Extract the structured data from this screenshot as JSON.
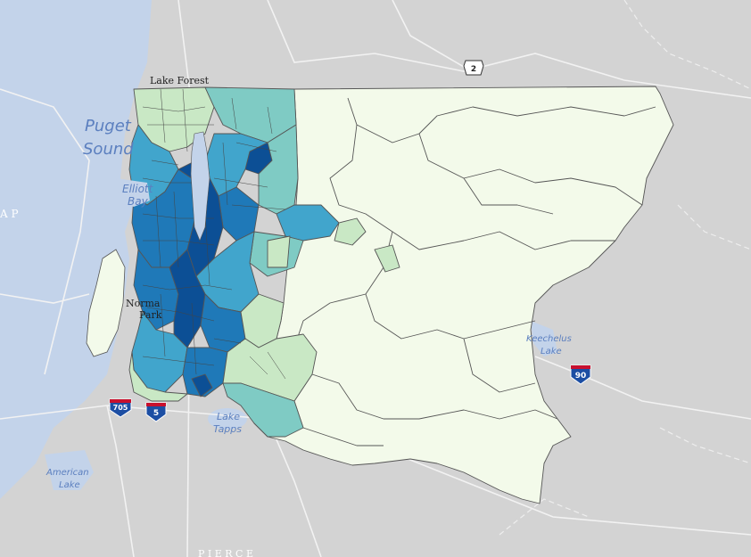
{
  "map": {
    "colors": {
      "land": "#d3d3d3",
      "water": "#c3d3ea",
      "road": "#f2f2f2",
      "boundary": "#555555",
      "class1": "#f3faea",
      "class2": "#c9e8c5",
      "class3": "#7fcbc4",
      "class4": "#41a5cc",
      "class5": "#1f79b8",
      "class6": "#0c4f95"
    },
    "labels": {
      "puget_sound_1": "Puget",
      "puget_sound_2": "Sound",
      "elliott_bay_1": "Elliott",
      "elliott_bay_2": "Bay",
      "lake_forest": "Lake Forest",
      "lake_tapps_1": "Lake",
      "lake_tapps_2": "Tapps",
      "keechelus_1": "Keechelus",
      "keechelus_2": "Lake",
      "american_lake_1": "American",
      "american_lake_2": "Lake",
      "kitsap_fragment": "A P",
      "normandy_park_1": "Norma",
      "normandy_park_2": "Park",
      "pierce_fragment": "P I E R C E"
    },
    "shields": {
      "us2": "2",
      "i705": "705",
      "i5": "5",
      "i90": "90"
    }
  }
}
